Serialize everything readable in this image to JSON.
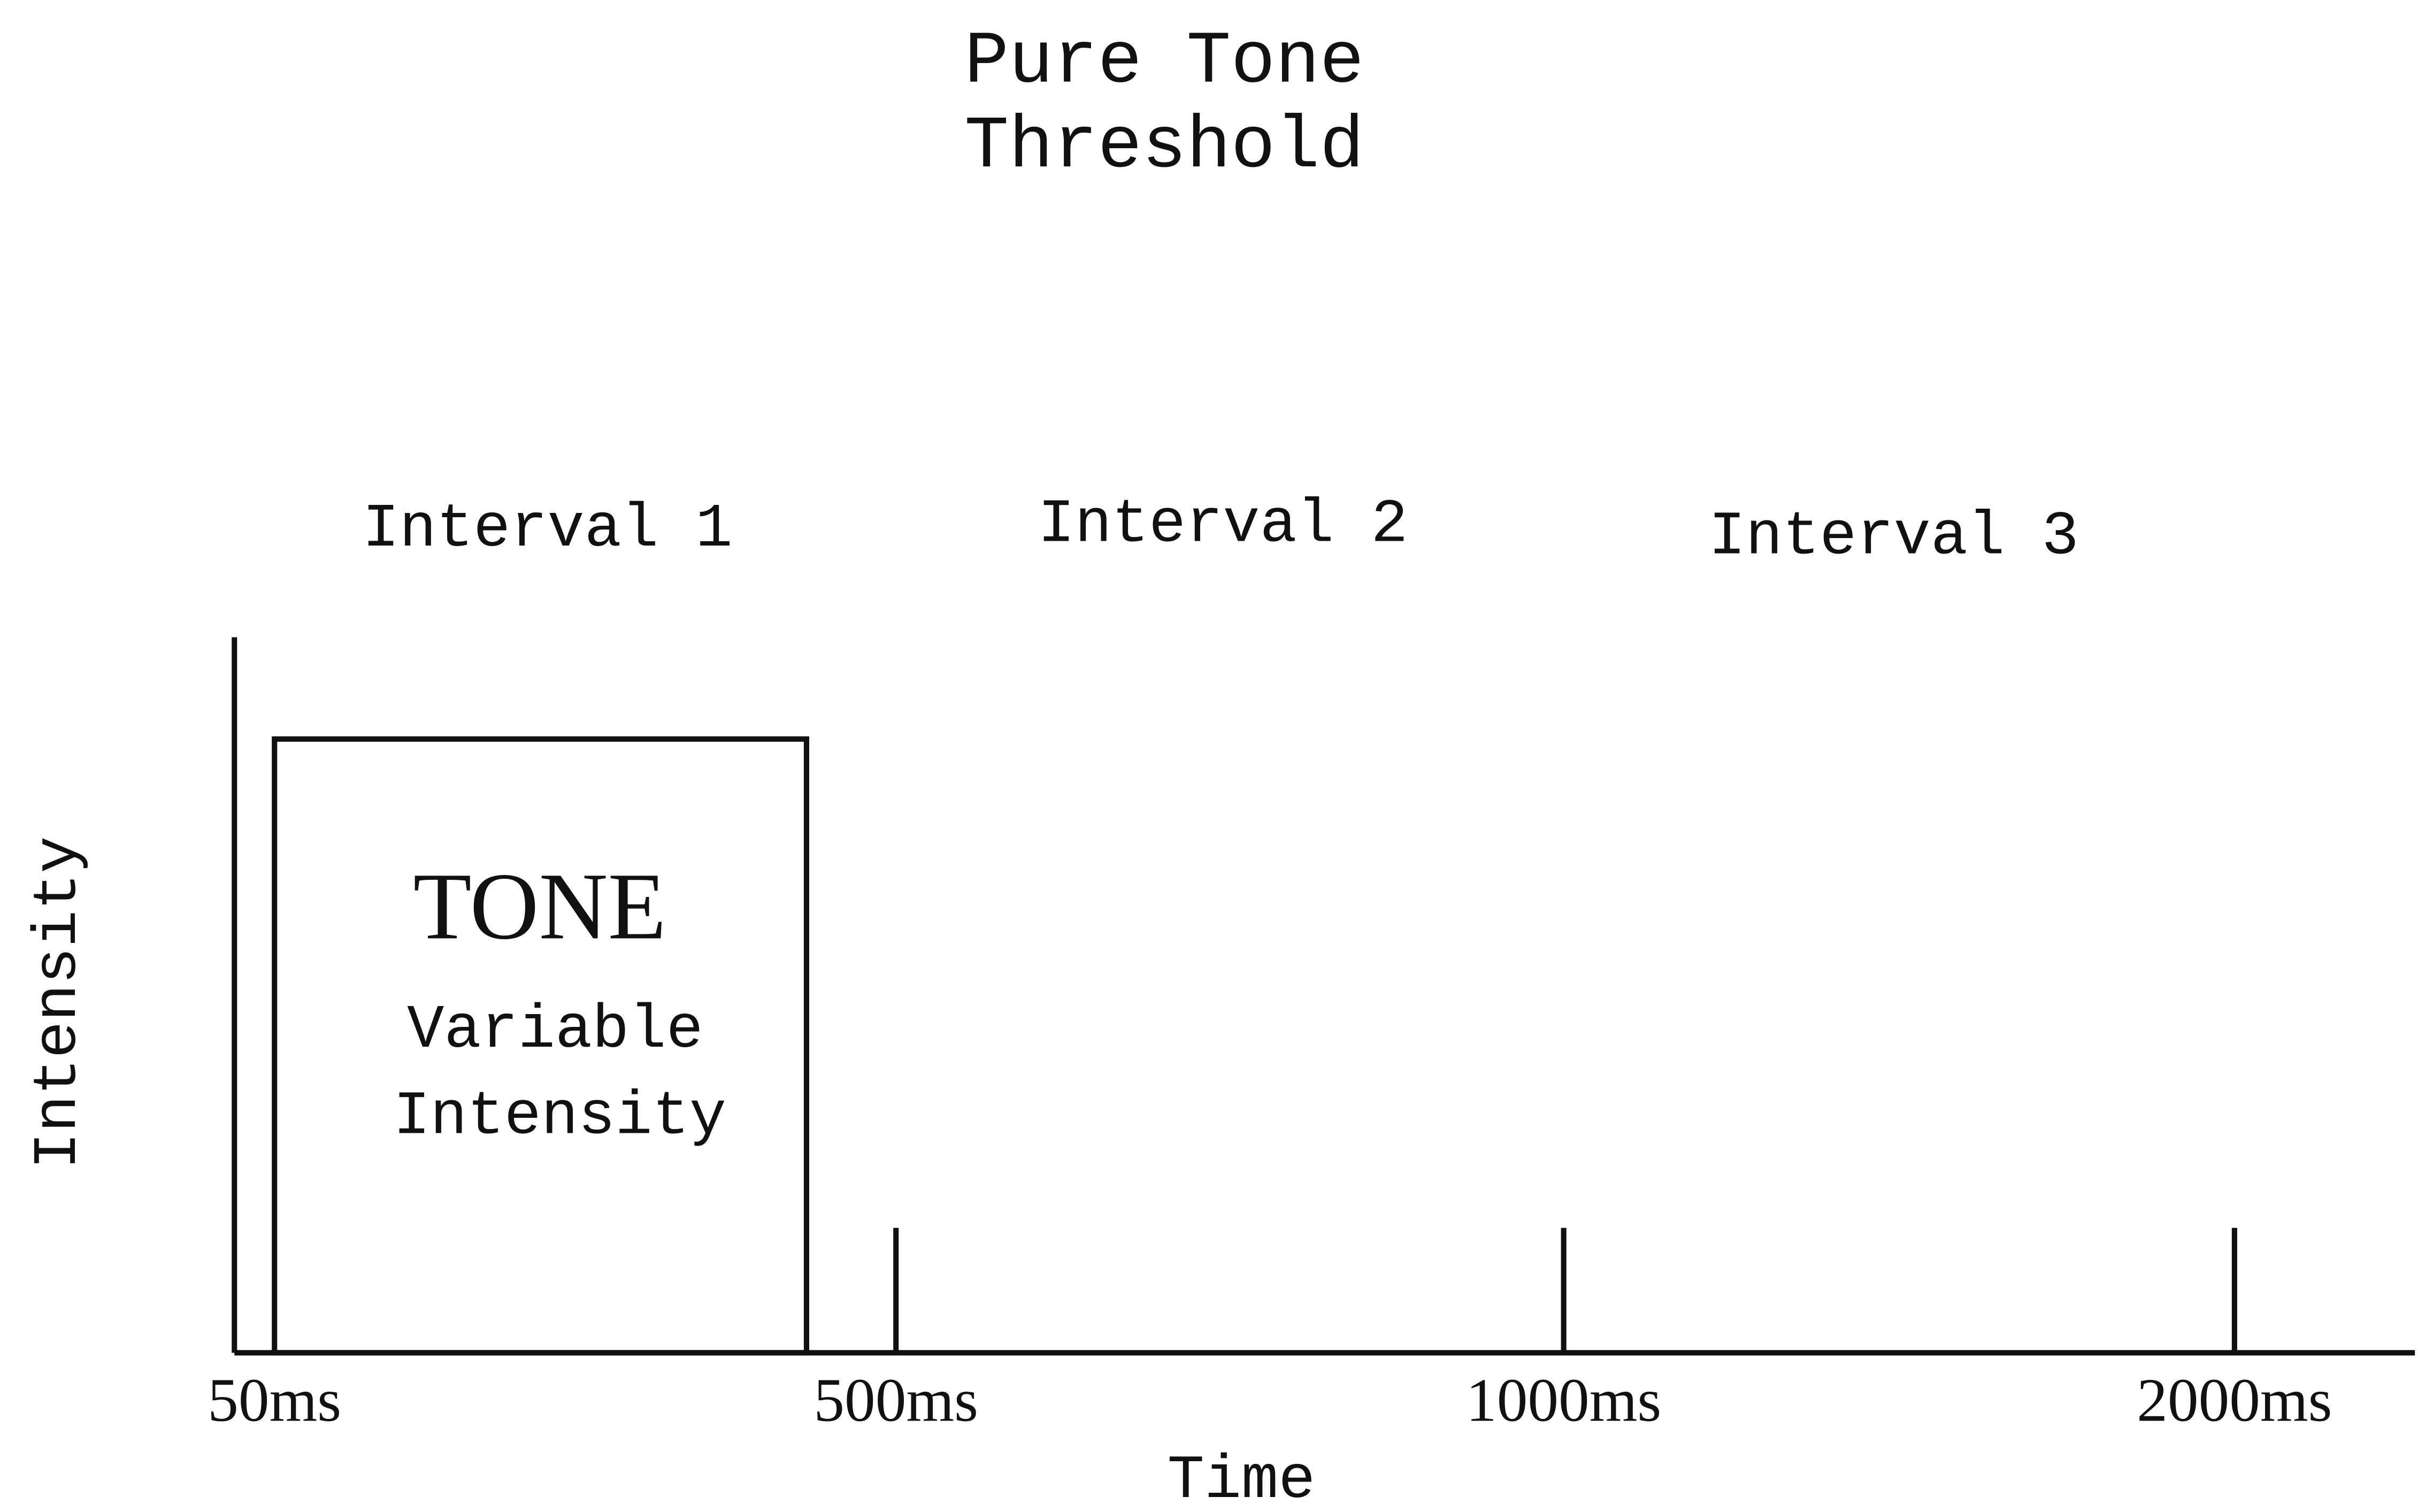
{
  "title": [
    "Pure Tone",
    "Threshold"
  ],
  "intervals": [
    "Interval 1",
    "Interval 2",
    "Interval 3"
  ],
  "tone": {
    "label": "TONE",
    "description": [
      "Variable",
      "Intensity"
    ]
  },
  "axes": {
    "x_label": "Time",
    "y_label": "Intensity",
    "ticks": [
      "50ms",
      "500ms",
      "1000ms",
      "2000ms"
    ]
  }
}
